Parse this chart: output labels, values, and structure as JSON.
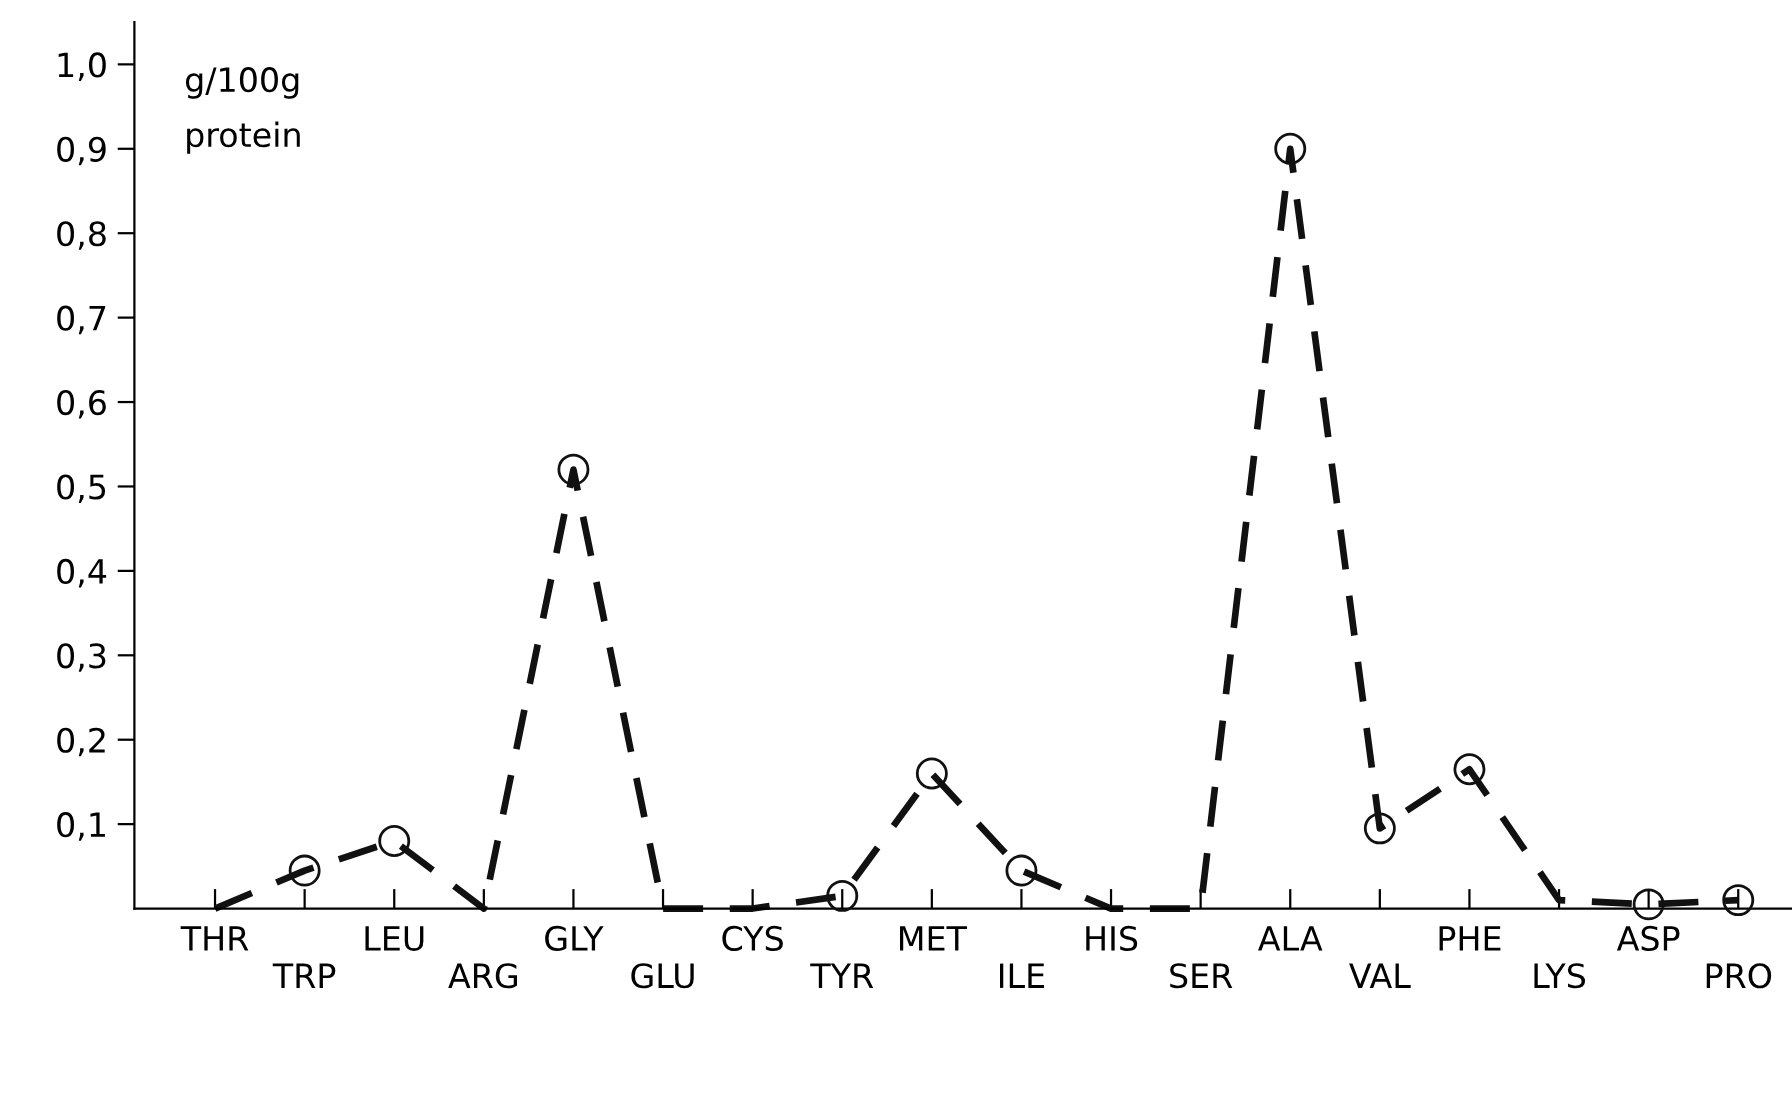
{
  "chart_data": {
    "type": "line",
    "categories": [
      "THR",
      "TRP",
      "LEU",
      "ARG",
      "GLY",
      "GLU",
      "CYS",
      "TYR",
      "MET",
      "ILE",
      "HIS",
      "SER",
      "ALA",
      "VAL",
      "PHE",
      "LYS",
      "ASP",
      "PRO"
    ],
    "series": [
      {
        "color": "#111111",
        "line_style": "dashed",
        "marker": "none",
        "values": [
          0,
          0.045,
          0.08,
          0,
          0.52,
          0,
          0,
          0.015,
          0.16,
          0.045,
          0,
          0,
          0.9,
          0.095,
          0.165,
          0.01,
          0.005,
          0.01
        ]
      },
      {
        "type": "scatter",
        "color": "#111111",
        "marker": "circle",
        "values": [
          null,
          0.045,
          0.08,
          null,
          0.52,
          null,
          null,
          0.015,
          0.16,
          0.045,
          null,
          null,
          0.9,
          0.095,
          0.165,
          null,
          0.005,
          0.01
        ]
      }
    ],
    "ylim": [
      0,
      1.05
    ],
    "yticks": [
      {
        "value": 0.1,
        "label": "0,1"
      },
      {
        "value": 0.2,
        "label": "0,2"
      },
      {
        "value": 0.3,
        "label": "0,3"
      },
      {
        "value": 0.4,
        "label": "0,4"
      },
      {
        "value": 0.5,
        "label": "0,5"
      },
      {
        "value": 0.6,
        "label": "0,6"
      },
      {
        "value": 0.7,
        "label": "0,7"
      },
      {
        "value": 0.8,
        "label": "0,8"
      },
      {
        "value": 0.9,
        "label": "0,9"
      },
      {
        "value": 1.0,
        "label": "1,0"
      }
    ],
    "annotations": [
      "g/100g\nprotein"
    ],
    "grid": false,
    "legend": false
  }
}
